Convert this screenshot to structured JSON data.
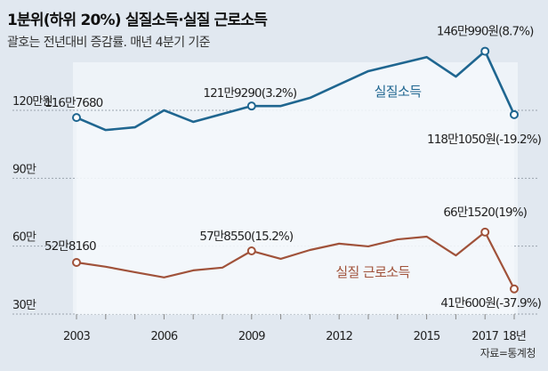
{
  "header": {
    "title": "1분위(하위 20%) 실질소득·실질 근로소득",
    "subtitle": "괄호는 전년대비 증감률. 매년 4분기 기준"
  },
  "source": "자료=통계청",
  "colors": {
    "income": "#1f6690",
    "labor_income": "#a0523a",
    "grid": "#9aa4ae",
    "panel": "#eef3f8",
    "background": "#e1e8f0"
  },
  "chart_data": {
    "type": "line",
    "title": "1분위(하위 20%) 실질소득·실질 근로소득",
    "subtitle": "괄호는 전년대비 증감률. 매년 4분기 기준",
    "xlabel": "",
    "ylabel": "",
    "unit": "만원",
    "x": [
      2003,
      2004,
      2005,
      2006,
      2007,
      2008,
      2009,
      2010,
      2011,
      2012,
      2013,
      2014,
      2015,
      2016,
      2017,
      2018
    ],
    "x_tick_labels": [
      {
        "x": 2003,
        "label": "2003"
      },
      {
        "x": 2006,
        "label": "2006"
      },
      {
        "x": 2009,
        "label": "2009"
      },
      {
        "x": 2012,
        "label": "2012"
      },
      {
        "x": 2015,
        "label": "2015"
      },
      {
        "x": 2017,
        "label": "2017"
      },
      {
        "x": 2018,
        "label": "18년"
      }
    ],
    "y_ticks": [
      {
        "value": 30,
        "label": "30만"
      },
      {
        "value": 60,
        "label": "60만"
      },
      {
        "value": 90,
        "label": "90만"
      },
      {
        "value": 120,
        "label": "120만원"
      }
    ],
    "ylim": [
      30,
      150
    ],
    "grid": true,
    "series": [
      {
        "name": "실질소득",
        "color": "#1f6690",
        "values": [
          116.8,
          111.3,
          112.5,
          120.0,
          114.9,
          118.4,
          121.9,
          121.9,
          125.5,
          131.4,
          137.3,
          140.4,
          143.5,
          134.9,
          146.1,
          118.1
        ],
        "annotations": [
          {
            "x": 2003,
            "label": "116만7680"
          },
          {
            "x": 2009,
            "label": "121만9290(3.2%)"
          },
          {
            "x": 2017,
            "label": "146만990원(8.7%)"
          },
          {
            "x": 2018,
            "label": "118만1050원(-19.2%)"
          }
        ],
        "series_label": "실질소득"
      },
      {
        "name": "실질 근로소득",
        "color": "#a0523a",
        "values": [
          52.8,
          50.9,
          48.5,
          46.2,
          49.3,
          50.5,
          57.9,
          54.4,
          58.3,
          61.1,
          59.9,
          63.0,
          64.2,
          55.9,
          66.2,
          41.1
        ],
        "annotations": [
          {
            "x": 2003,
            "label": "52만8160"
          },
          {
            "x": 2009,
            "label": "57만8550(15.2%)"
          },
          {
            "x": 2017,
            "label": "66만1520(19%)"
          },
          {
            "x": 2018,
            "label": "41만600원(-37.9%)"
          }
        ],
        "series_label": "실질 근로소득"
      }
    ]
  }
}
